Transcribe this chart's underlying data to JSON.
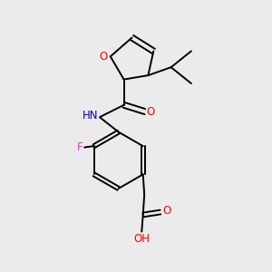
{
  "background_color": "#ebebeb",
  "bond_color": "#000000",
  "atom_colors": {
    "O": "#ff0000",
    "N": "#0000cd",
    "F": "#cc44cc",
    "H": "#888888",
    "C": "#000000"
  },
  "lw": 1.4,
  "fs": 8.5
}
